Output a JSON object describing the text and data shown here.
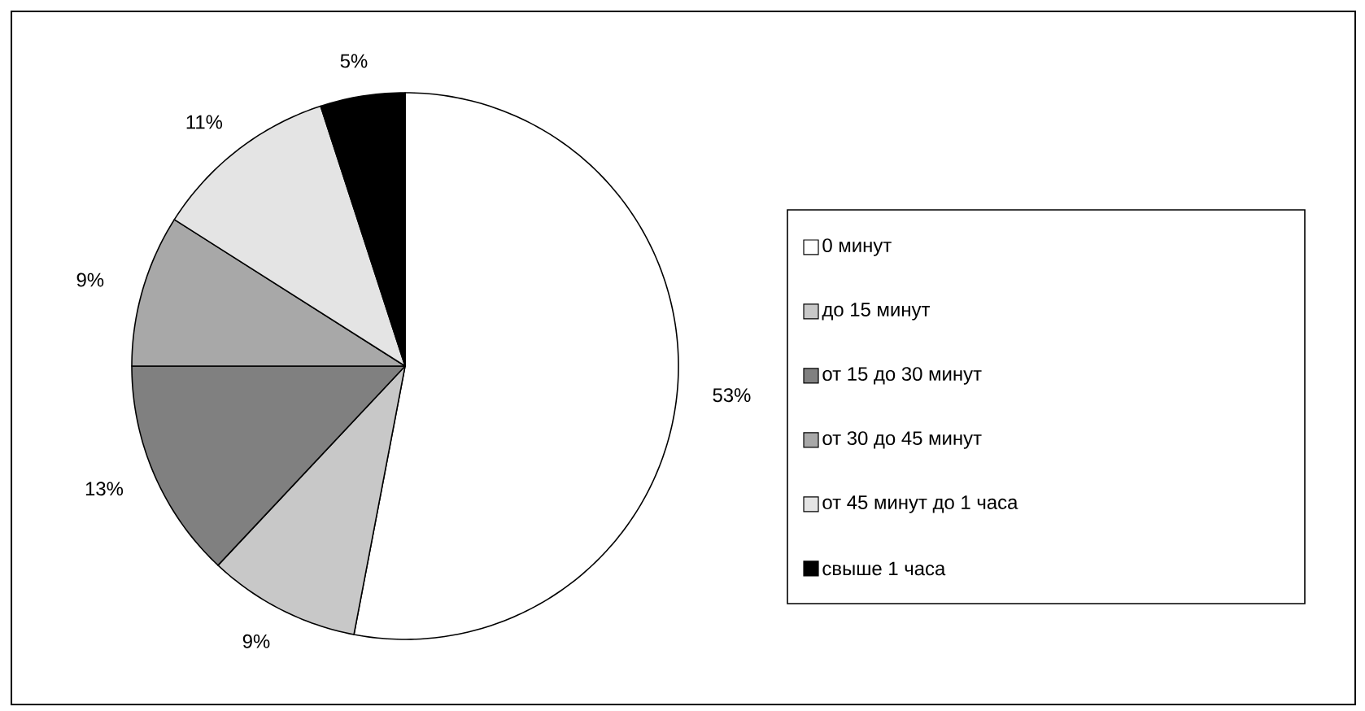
{
  "chart_data": {
    "type": "pie",
    "categories": [
      "0 минут",
      "до 15 минут",
      "от 15 до 30 минут",
      "от 30 до 45 минут",
      "от 45 минут до 1 часа",
      "свыше 1 часа"
    ],
    "values": [
      53,
      9,
      13,
      9,
      11,
      5
    ],
    "colors": [
      "#ffffff",
      "#c8c8c8",
      "#808080",
      "#a8a8a8",
      "#e4e4e4",
      "#000000"
    ],
    "value_labels": [
      "53%",
      "9%",
      "13%",
      "9%",
      "11%",
      "5%"
    ],
    "legend": "right"
  }
}
